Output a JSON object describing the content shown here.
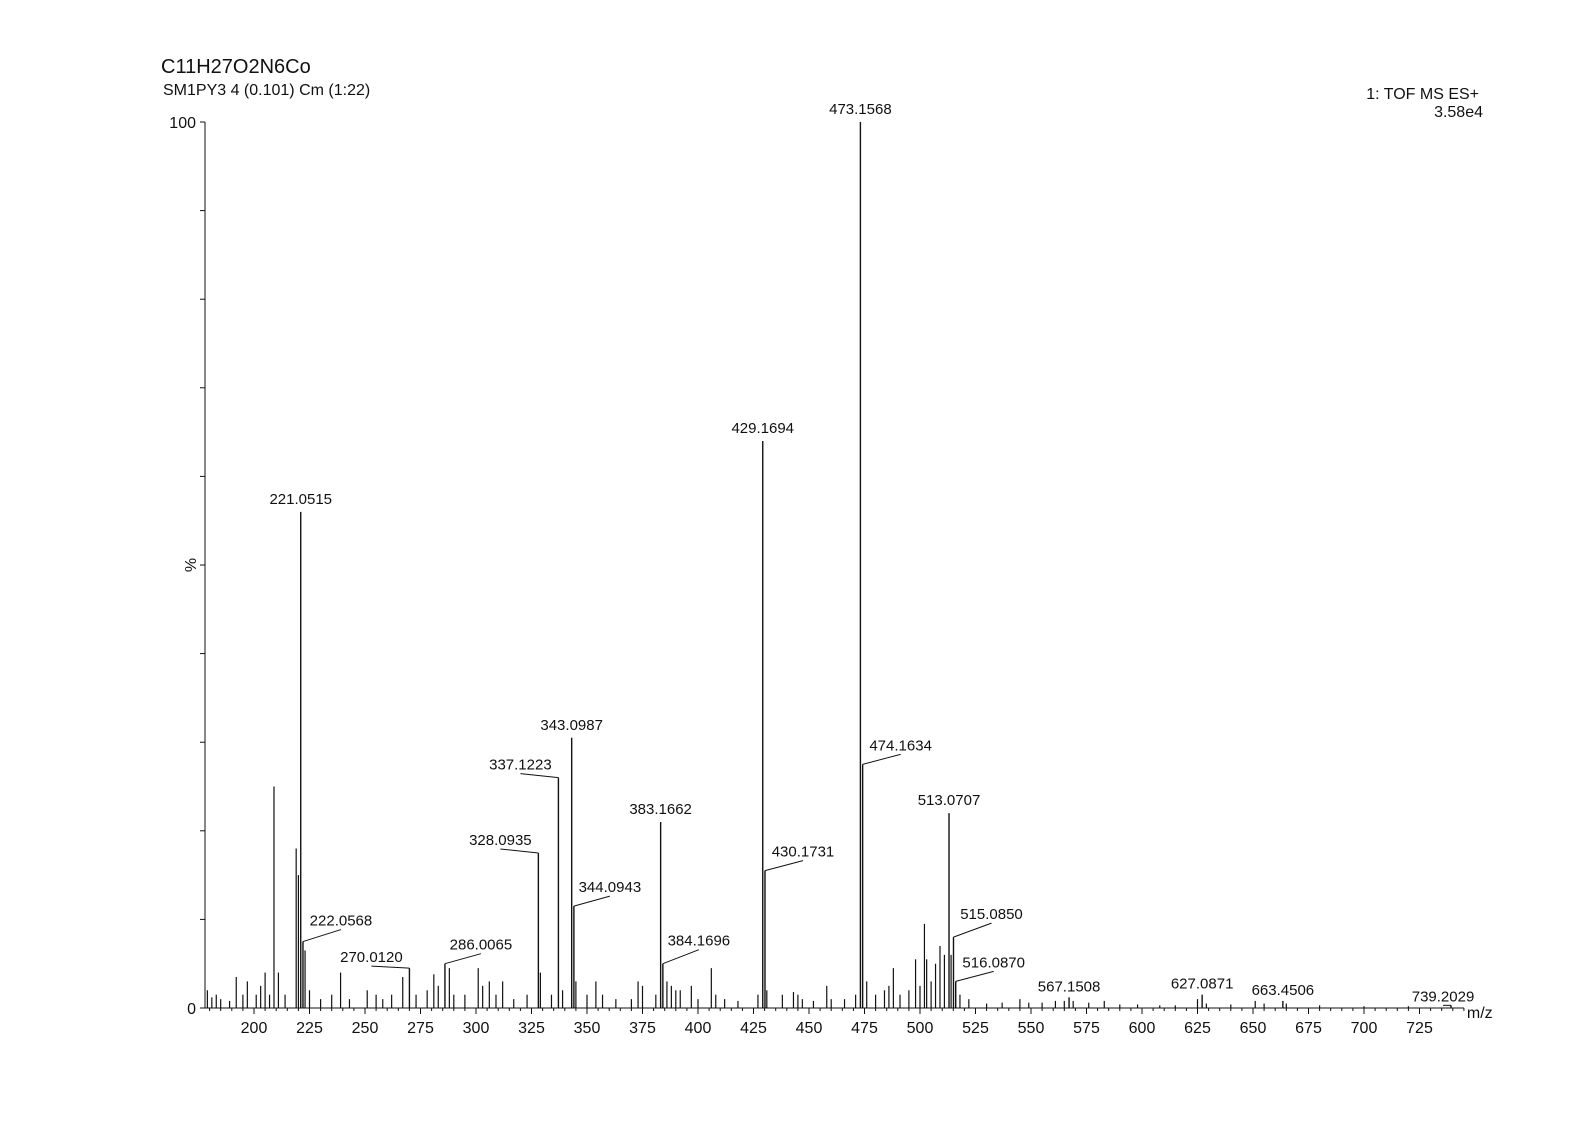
{
  "header": {
    "formula": "C11H27O2N6Co",
    "sample": "SM1PY3 4 (0.101) Cm (1:22)",
    "mode": "1: TOF MS ES+",
    "intensity": "3.58e4"
  },
  "chart_data": {
    "type": "bar",
    "title": "",
    "xlabel": "m/z",
    "ylabel": "%",
    "xlim": [
      178,
      745
    ],
    "ylim": [
      0,
      100
    ],
    "xticks": [
      200,
      225,
      250,
      275,
      300,
      325,
      350,
      375,
      400,
      425,
      450,
      475,
      500,
      525,
      550,
      575,
      600,
      625,
      650,
      675,
      700,
      725
    ],
    "yticks": [
      0,
      100
    ],
    "grid": false,
    "color": "#111111",
    "labeled_peaks": [
      {
        "mz": 221.0515,
        "intensity": 56,
        "label": "221.0515"
      },
      {
        "mz": 222.0568,
        "intensity": 7.5,
        "label": "222.0568"
      },
      {
        "mz": 270.012,
        "intensity": 4.5,
        "label": "270.0120"
      },
      {
        "mz": 286.0065,
        "intensity": 5.0,
        "label": "286.0065"
      },
      {
        "mz": 328.0935,
        "intensity": 17.5,
        "label": "328.0935"
      },
      {
        "mz": 337.1223,
        "intensity": 26,
        "label": "337.1223"
      },
      {
        "mz": 343.0987,
        "intensity": 30.5,
        "label": "343.0987"
      },
      {
        "mz": 344.0943,
        "intensity": 11.5,
        "label": "344.0943"
      },
      {
        "mz": 383.1662,
        "intensity": 21,
        "label": "383.1662"
      },
      {
        "mz": 384.1696,
        "intensity": 5.0,
        "label": "384.1696"
      },
      {
        "mz": 429.1694,
        "intensity": 64,
        "label": "429.1694"
      },
      {
        "mz": 430.1731,
        "intensity": 15.5,
        "label": "430.1731"
      },
      {
        "mz": 473.1568,
        "intensity": 100,
        "label": "473.1568"
      },
      {
        "mz": 474.1634,
        "intensity": 27.5,
        "label": "474.1634"
      },
      {
        "mz": 513.0707,
        "intensity": 22,
        "label": "513.0707"
      },
      {
        "mz": 515.085,
        "intensity": 8.0,
        "label": "515.0850"
      },
      {
        "mz": 516.087,
        "intensity": 3.0,
        "label": "516.0870"
      },
      {
        "mz": 567.1508,
        "intensity": 1.2,
        "label": "567.1508"
      },
      {
        "mz": 627.0871,
        "intensity": 1.5,
        "label": "627.0871"
      },
      {
        "mz": 663.4506,
        "intensity": 0.8,
        "label": "663.4506"
      },
      {
        "mz": 739.2029,
        "intensity": 0.3,
        "label": "739.2029"
      }
    ],
    "minor_peaks": [
      {
        "mz": 179,
        "intensity": 2.0
      },
      {
        "mz": 181,
        "intensity": 1.2
      },
      {
        "mz": 183,
        "intensity": 1.5
      },
      {
        "mz": 185,
        "intensity": 1.0
      },
      {
        "mz": 189,
        "intensity": 0.8
      },
      {
        "mz": 192,
        "intensity": 3.5
      },
      {
        "mz": 195,
        "intensity": 1.5
      },
      {
        "mz": 197,
        "intensity": 3.0
      },
      {
        "mz": 201,
        "intensity": 1.5
      },
      {
        "mz": 203,
        "intensity": 2.5
      },
      {
        "mz": 205,
        "intensity": 4.0
      },
      {
        "mz": 207,
        "intensity": 1.5
      },
      {
        "mz": 209,
        "intensity": 25
      },
      {
        "mz": 211,
        "intensity": 4.0
      },
      {
        "mz": 214,
        "intensity": 1.5
      },
      {
        "mz": 219,
        "intensity": 18
      },
      {
        "mz": 220,
        "intensity": 15
      },
      {
        "mz": 223,
        "intensity": 6.5
      },
      {
        "mz": 225,
        "intensity": 2.0
      },
      {
        "mz": 230,
        "intensity": 1.0
      },
      {
        "mz": 235,
        "intensity": 1.5
      },
      {
        "mz": 239,
        "intensity": 4.0
      },
      {
        "mz": 243,
        "intensity": 1.0
      },
      {
        "mz": 251,
        "intensity": 2.0
      },
      {
        "mz": 255,
        "intensity": 1.5
      },
      {
        "mz": 258,
        "intensity": 1.0
      },
      {
        "mz": 262,
        "intensity": 1.5
      },
      {
        "mz": 267,
        "intensity": 3.5
      },
      {
        "mz": 273,
        "intensity": 1.5
      },
      {
        "mz": 278,
        "intensity": 2.0
      },
      {
        "mz": 281,
        "intensity": 3.8
      },
      {
        "mz": 283,
        "intensity": 2.5
      },
      {
        "mz": 288,
        "intensity": 4.5
      },
      {
        "mz": 290,
        "intensity": 1.5
      },
      {
        "mz": 295,
        "intensity": 1.5
      },
      {
        "mz": 301,
        "intensity": 4.5
      },
      {
        "mz": 303,
        "intensity": 2.5
      },
      {
        "mz": 306,
        "intensity": 3.0
      },
      {
        "mz": 309,
        "intensity": 1.5
      },
      {
        "mz": 312,
        "intensity": 3.0
      },
      {
        "mz": 317,
        "intensity": 1.0
      },
      {
        "mz": 323,
        "intensity": 1.5
      },
      {
        "mz": 329,
        "intensity": 4.0
      },
      {
        "mz": 334,
        "intensity": 1.5
      },
      {
        "mz": 339,
        "intensity": 2.0
      },
      {
        "mz": 345,
        "intensity": 3.0
      },
      {
        "mz": 350,
        "intensity": 1.5
      },
      {
        "mz": 354,
        "intensity": 3.0
      },
      {
        "mz": 357,
        "intensity": 1.5
      },
      {
        "mz": 363,
        "intensity": 1.0
      },
      {
        "mz": 370,
        "intensity": 1.0
      },
      {
        "mz": 373,
        "intensity": 3.0
      },
      {
        "mz": 375,
        "intensity": 2.5
      },
      {
        "mz": 381,
        "intensity": 1.5
      },
      {
        "mz": 386,
        "intensity": 3.0
      },
      {
        "mz": 388,
        "intensity": 2.5
      },
      {
        "mz": 390,
        "intensity": 2.0
      },
      {
        "mz": 392,
        "intensity": 2.0
      },
      {
        "mz": 397,
        "intensity": 2.5
      },
      {
        "mz": 400,
        "intensity": 1.0
      },
      {
        "mz": 406,
        "intensity": 4.5
      },
      {
        "mz": 408,
        "intensity": 1.5
      },
      {
        "mz": 412,
        "intensity": 1.0
      },
      {
        "mz": 418,
        "intensity": 0.8
      },
      {
        "mz": 427,
        "intensity": 1.5
      },
      {
        "mz": 431,
        "intensity": 2.0
      },
      {
        "mz": 438,
        "intensity": 1.5
      },
      {
        "mz": 443,
        "intensity": 1.8
      },
      {
        "mz": 445,
        "intensity": 1.5
      },
      {
        "mz": 447,
        "intensity": 1.0
      },
      {
        "mz": 452,
        "intensity": 0.8
      },
      {
        "mz": 458,
        "intensity": 2.5
      },
      {
        "mz": 460,
        "intensity": 1.0
      },
      {
        "mz": 466,
        "intensity": 1.0
      },
      {
        "mz": 471,
        "intensity": 1.5
      },
      {
        "mz": 476,
        "intensity": 3.0
      },
      {
        "mz": 480,
        "intensity": 1.5
      },
      {
        "mz": 484,
        "intensity": 2.0
      },
      {
        "mz": 486,
        "intensity": 2.5
      },
      {
        "mz": 488,
        "intensity": 4.5
      },
      {
        "mz": 491,
        "intensity": 1.5
      },
      {
        "mz": 495,
        "intensity": 2.0
      },
      {
        "mz": 498,
        "intensity": 5.5
      },
      {
        "mz": 500,
        "intensity": 2.5
      },
      {
        "mz": 502,
        "intensity": 9.5
      },
      {
        "mz": 503,
        "intensity": 5.5
      },
      {
        "mz": 505,
        "intensity": 3.0
      },
      {
        "mz": 507,
        "intensity": 5.0
      },
      {
        "mz": 509,
        "intensity": 7.0
      },
      {
        "mz": 511,
        "intensity": 6.0
      },
      {
        "mz": 514,
        "intensity": 6.0
      },
      {
        "mz": 518,
        "intensity": 1.5
      },
      {
        "mz": 522,
        "intensity": 1.0
      },
      {
        "mz": 530,
        "intensity": 0.5
      },
      {
        "mz": 537,
        "intensity": 0.6
      },
      {
        "mz": 545,
        "intensity": 1.0
      },
      {
        "mz": 549,
        "intensity": 0.6
      },
      {
        "mz": 555,
        "intensity": 0.6
      },
      {
        "mz": 561,
        "intensity": 0.8
      },
      {
        "mz": 565,
        "intensity": 0.8
      },
      {
        "mz": 569,
        "intensity": 0.8
      },
      {
        "mz": 576,
        "intensity": 0.6
      },
      {
        "mz": 583,
        "intensity": 0.8
      },
      {
        "mz": 590,
        "intensity": 0.4
      },
      {
        "mz": 598,
        "intensity": 0.4
      },
      {
        "mz": 608,
        "intensity": 0.3
      },
      {
        "mz": 615,
        "intensity": 0.3
      },
      {
        "mz": 625,
        "intensity": 1.0
      },
      {
        "mz": 629,
        "intensity": 0.5
      },
      {
        "mz": 640,
        "intensity": 0.4
      },
      {
        "mz": 651,
        "intensity": 0.8
      },
      {
        "mz": 655,
        "intensity": 0.5
      },
      {
        "mz": 665,
        "intensity": 0.5
      },
      {
        "mz": 680,
        "intensity": 0.3
      },
      {
        "mz": 700,
        "intensity": 0.2
      },
      {
        "mz": 720,
        "intensity": 0.2
      }
    ]
  }
}
